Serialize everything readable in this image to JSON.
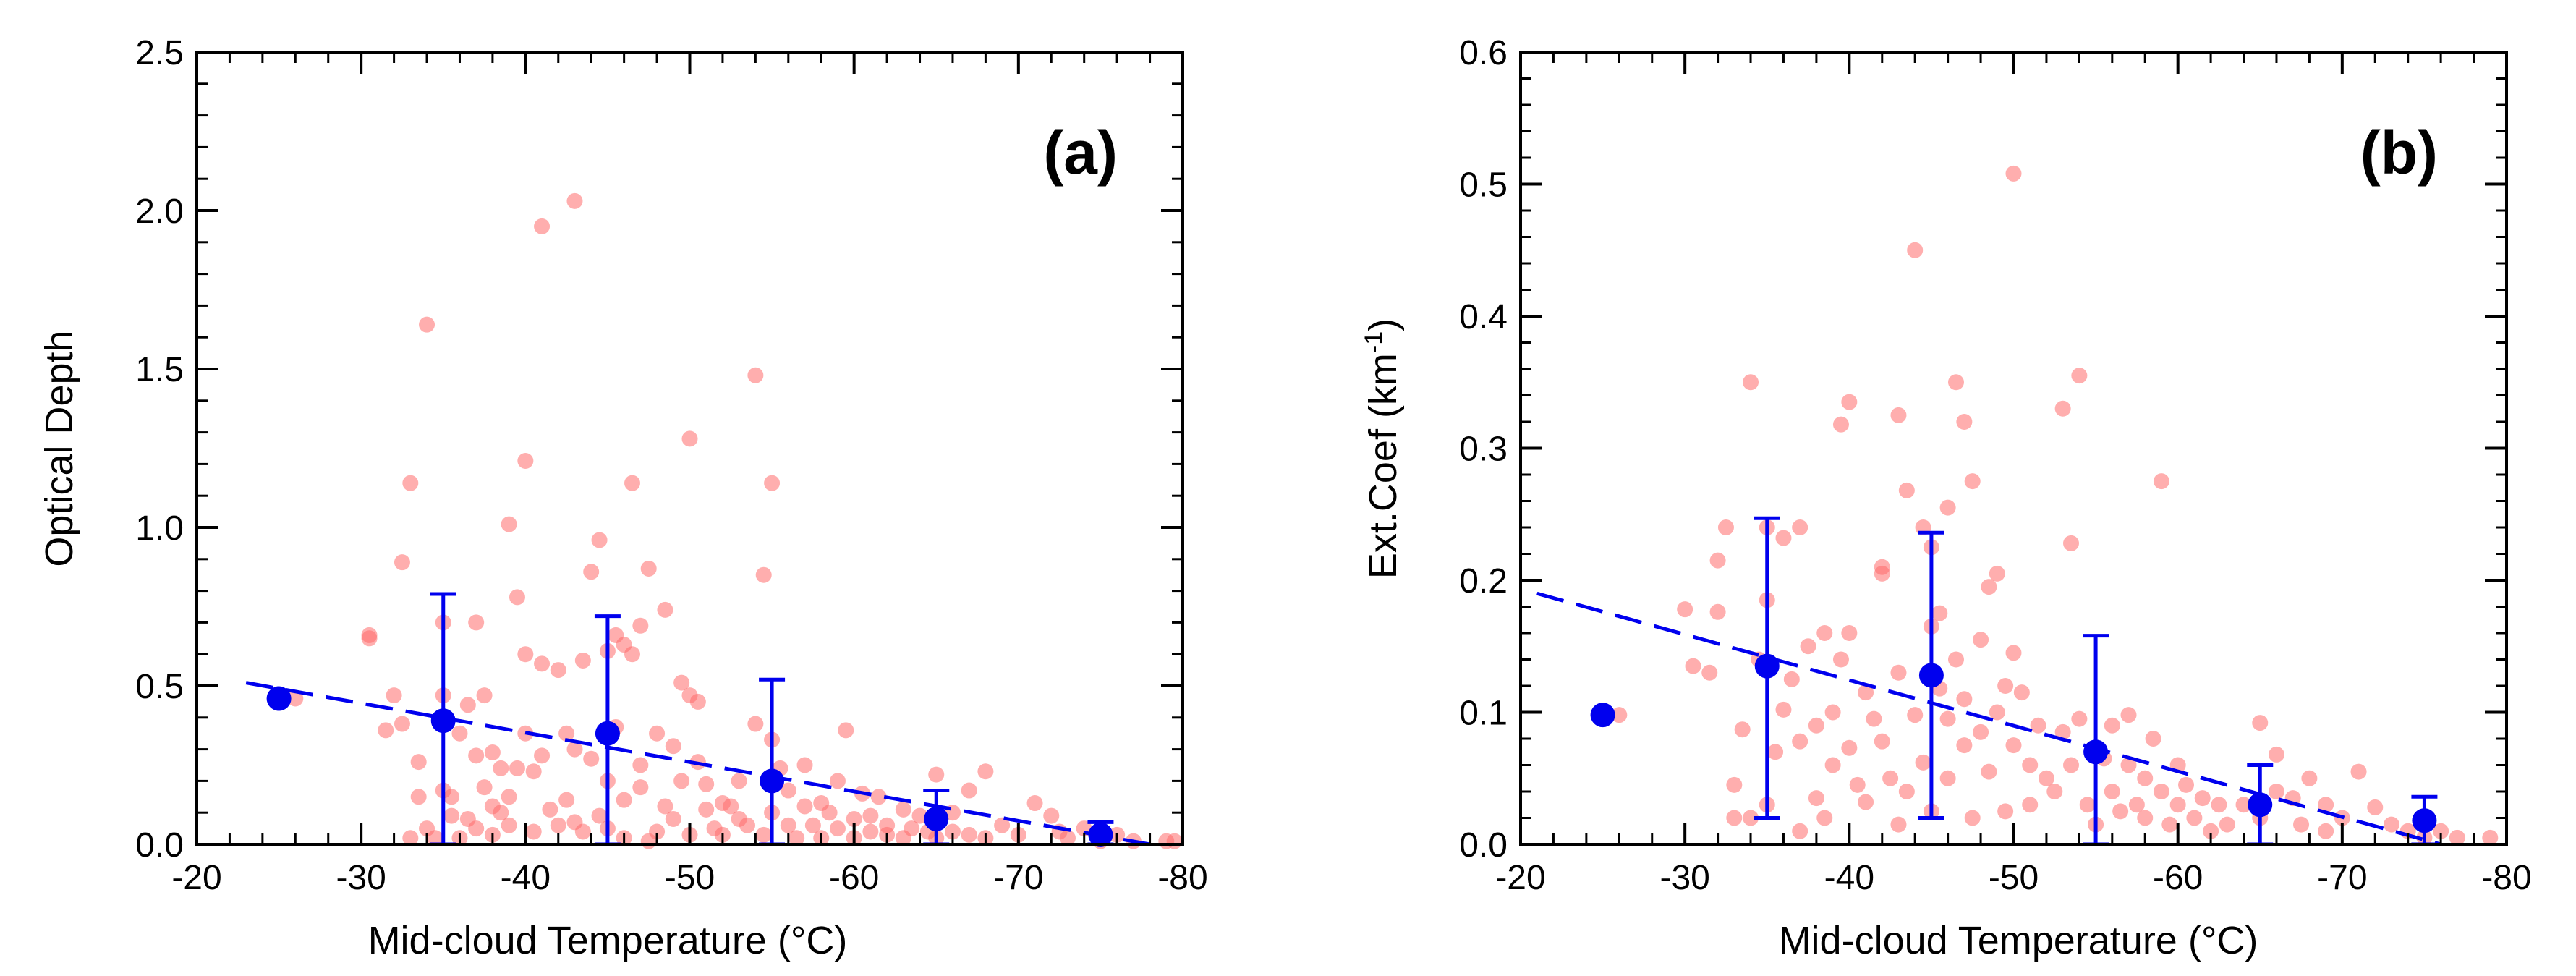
{
  "colors": {
    "scatter": "#ff6b6b",
    "mean": "#0000ee",
    "axis": "#000000"
  },
  "chart_data": [
    {
      "type": "scatter",
      "panel_label": "(a)",
      "xlabel": "Mid-cloud Temperature (",
      "xlabel_unit": "°C)",
      "ylabel": "Optical Depth",
      "xlim": [
        -20,
        -80
      ],
      "ylim": [
        0,
        2.5
      ],
      "xticks": [
        -20,
        -30,
        -40,
        -50,
        -60,
        -70,
        -80
      ],
      "xtick_labels": [
        "-20",
        "-30",
        "-40",
        "-50",
        "-60",
        "-70",
        "-80"
      ],
      "yticks": [
        0,
        0.5,
        1.0,
        1.5,
        2.0,
        2.5
      ],
      "ytick_labels": [
        "0.0",
        "0.5",
        "1.0",
        "1.5",
        "2.0",
        "2.5"
      ],
      "scatter_points": [
        [
          -26,
          0.46
        ],
        [
          -30.5,
          0.66
        ],
        [
          -30.5,
          0.65
        ],
        [
          -32,
          0.47
        ],
        [
          -31.5,
          0.36
        ],
        [
          -32.5,
          0.38
        ],
        [
          -32.5,
          0.89
        ],
        [
          -33,
          1.14
        ],
        [
          -33,
          0.02
        ],
        [
          -33.5,
          0.15
        ],
        [
          -33.5,
          0.26
        ],
        [
          -34,
          0.05
        ],
        [
          -34,
          1.64
        ],
        [
          -34.5,
          0.02
        ],
        [
          -35,
          0.17
        ],
        [
          -35,
          0.47
        ],
        [
          -35,
          0.7
        ],
        [
          -35.5,
          0.09
        ],
        [
          -35.5,
          0.15
        ],
        [
          -36,
          0.35
        ],
        [
          -36,
          0.02
        ],
        [
          -36.5,
          0.08
        ],
        [
          -36.5,
          0.44
        ],
        [
          -37,
          0.05
        ],
        [
          -37,
          0.28
        ],
        [
          -37,
          0.7
        ],
        [
          -37.5,
          0.47
        ],
        [
          -37.5,
          0.18
        ],
        [
          -38,
          0.12
        ],
        [
          -38,
          0.29
        ],
        [
          -38,
          0.03
        ],
        [
          -38.5,
          0.24
        ],
        [
          -38.5,
          0.1
        ],
        [
          -39,
          1.01
        ],
        [
          -39,
          0.15
        ],
        [
          -39,
          0.06
        ],
        [
          -39.5,
          0.24
        ],
        [
          -39.5,
          0.78
        ],
        [
          -40,
          1.21
        ],
        [
          -40,
          0.6
        ],
        [
          -40,
          0.35
        ],
        [
          -40.5,
          0.04
        ],
        [
          -40.5,
          0.23
        ],
        [
          -41,
          1.95
        ],
        [
          -41,
          0.57
        ],
        [
          -41,
          0.28
        ],
        [
          -41.5,
          0.11
        ],
        [
          -42,
          0.55
        ],
        [
          -42,
          0.06
        ],
        [
          -42.5,
          0.14
        ],
        [
          -42.5,
          0.35
        ],
        [
          -43,
          2.03
        ],
        [
          -43,
          0.3
        ],
        [
          -43,
          0.07
        ],
        [
          -43.5,
          0.58
        ],
        [
          -43.5,
          0.04
        ],
        [
          -44,
          0.27
        ],
        [
          -44,
          0.86
        ],
        [
          -44.5,
          0.96
        ],
        [
          -44.5,
          0.09
        ],
        [
          -45,
          0.61
        ],
        [
          -45,
          0.2
        ],
        [
          -45,
          0.05
        ],
        [
          -45.5,
          0.66
        ],
        [
          -45.5,
          0.37
        ],
        [
          -46,
          0.63
        ],
        [
          -46,
          0.14
        ],
        [
          -46,
          0.02
        ],
        [
          -46.5,
          1.14
        ],
        [
          -46.5,
          0.6
        ],
        [
          -47,
          0.69
        ],
        [
          -47,
          0.25
        ],
        [
          -47,
          0.18
        ],
        [
          -47.5,
          0.87
        ],
        [
          -47.5,
          0.01
        ],
        [
          -48,
          0.35
        ],
        [
          -48,
          0.04
        ],
        [
          -48.5,
          0.12
        ],
        [
          -48.5,
          0.74
        ],
        [
          -49,
          0.31
        ],
        [
          -49,
          0.08
        ],
        [
          -49.5,
          0.51
        ],
        [
          -49.5,
          0.2
        ],
        [
          -50,
          1.28
        ],
        [
          -50,
          0.47
        ],
        [
          -50,
          0.03
        ],
        [
          -50.5,
          0.26
        ],
        [
          -50.5,
          0.45
        ],
        [
          -51,
          0.11
        ],
        [
          -51,
          0.19
        ],
        [
          -51.5,
          0.05
        ],
        [
          -52,
          0.13
        ],
        [
          -52,
          0.03
        ],
        [
          -52.5,
          0.12
        ],
        [
          -53,
          0.2
        ],
        [
          -53,
          0.08
        ],
        [
          -53.5,
          0.06
        ],
        [
          -54,
          1.48
        ],
        [
          -54,
          0.38
        ],
        [
          -54.5,
          0.85
        ],
        [
          -54.5,
          0.03
        ],
        [
          -55,
          1.14
        ],
        [
          -55,
          0.33
        ],
        [
          -55,
          0.1
        ],
        [
          -55.5,
          0.24
        ],
        [
          -56,
          0.17
        ],
        [
          -56,
          0.06
        ],
        [
          -56.5,
          0.02
        ],
        [
          -57,
          0.12
        ],
        [
          -57,
          0.25
        ],
        [
          -57.5,
          0.06
        ],
        [
          -58,
          0.13
        ],
        [
          -58,
          0.02
        ],
        [
          -58.5,
          0.1
        ],
        [
          -59,
          0.05
        ],
        [
          -59,
          0.2
        ],
        [
          -59.5,
          0.36
        ],
        [
          -60,
          0.08
        ],
        [
          -60,
          0.02
        ],
        [
          -60.5,
          0.16
        ],
        [
          -61,
          0.04
        ],
        [
          -61,
          0.09
        ],
        [
          -61.5,
          0.15
        ],
        [
          -62,
          0.03
        ],
        [
          -62,
          0.06
        ],
        [
          -63,
          0.11
        ],
        [
          -63,
          0.02
        ],
        [
          -63.5,
          0.05
        ],
        [
          -64,
          0.09
        ],
        [
          -64.5,
          0.04
        ],
        [
          -65,
          0.22
        ],
        [
          -65,
          0.02
        ],
        [
          -66,
          0.1
        ],
        [
          -66,
          0.04
        ],
        [
          -67,
          0.17
        ],
        [
          -67,
          0.03
        ],
        [
          -68,
          0.23
        ],
        [
          -68,
          0.02
        ],
        [
          -69,
          0.06
        ],
        [
          -70,
          0.03
        ],
        [
          -71,
          0.13
        ],
        [
          -72,
          0.09
        ],
        [
          -72.5,
          0.04
        ],
        [
          -73,
          0.02
        ],
        [
          -74,
          0.05
        ],
        [
          -75,
          0.01
        ],
        [
          -76,
          0.03
        ],
        [
          -77,
          0.01
        ],
        [
          -79,
          0.01
        ],
        [
          -79.5,
          0.01
        ]
      ],
      "means": [
        {
          "x": -25,
          "y": 0.46,
          "err_low": null,
          "err_high": null
        },
        {
          "x": -35,
          "y": 0.39,
          "err_low": 0.0,
          "err_high": 0.79
        },
        {
          "x": -45,
          "y": 0.35,
          "err_low": 0.0,
          "err_high": 0.72
        },
        {
          "x": -55,
          "y": 0.2,
          "err_low": 0.0,
          "err_high": 0.52
        },
        {
          "x": -65,
          "y": 0.08,
          "err_low": 0.0,
          "err_high": 0.17
        },
        {
          "x": -75,
          "y": 0.03,
          "err_low": 0.0,
          "err_high": 0.07
        }
      ],
      "fit_line": {
        "x1": -23,
        "y1": 0.51,
        "x2": -78,
        "y2": 0.0
      }
    },
    {
      "type": "scatter",
      "panel_label": "(b)",
      "xlabel": "Mid-cloud Temperature (",
      "xlabel_unit": "°C)",
      "ylabel": "Ext.Coef (km",
      "ylabel_sup": "-1",
      "ylabel_end": ")",
      "xlim": [
        -20,
        -80
      ],
      "ylim": [
        0,
        0.6
      ],
      "xticks": [
        -20,
        -30,
        -40,
        -50,
        -60,
        -70,
        -80
      ],
      "xtick_labels": [
        "-20",
        "-30",
        "-40",
        "-50",
        "-60",
        "-70",
        "-80"
      ],
      "yticks": [
        0,
        0.1,
        0.2,
        0.3,
        0.4,
        0.5,
        0.6
      ],
      "ytick_labels": [
        "0.0",
        "0.1",
        "0.2",
        "0.3",
        "0.4",
        "0.5",
        "0.6"
      ],
      "scatter_points": [
        [
          -26,
          0.098
        ],
        [
          -30,
          0.178
        ],
        [
          -30.5,
          0.135
        ],
        [
          -31.5,
          0.13
        ],
        [
          -32,
          0.176
        ],
        [
          -32,
          0.215
        ],
        [
          -32.5,
          0.24
        ],
        [
          -33,
          0.045
        ],
        [
          -33,
          0.02
        ],
        [
          -33.5,
          0.087
        ],
        [
          -34,
          0.35
        ],
        [
          -34,
          0.02
        ],
        [
          -34.5,
          0.14
        ],
        [
          -35,
          0.03
        ],
        [
          -35,
          0.185
        ],
        [
          -35,
          0.24
        ],
        [
          -35.5,
          0.07
        ],
        [
          -36,
          0.102
        ],
        [
          -36,
          0.232
        ],
        [
          -36.5,
          0.125
        ],
        [
          -37,
          0.01
        ],
        [
          -37,
          0.078
        ],
        [
          -37,
          0.24
        ],
        [
          -37.5,
          0.15
        ],
        [
          -38,
          0.09
        ],
        [
          -38,
          0.035
        ],
        [
          -38.5,
          0.16
        ],
        [
          -38.5,
          0.02
        ],
        [
          -39,
          0.1
        ],
        [
          -39,
          0.06
        ],
        [
          -39.5,
          0.318
        ],
        [
          -39.5,
          0.14
        ],
        [
          -40,
          0.335
        ],
        [
          -40,
          0.16
        ],
        [
          -40,
          0.073
        ],
        [
          -40.5,
          0.045
        ],
        [
          -41,
          0.115
        ],
        [
          -41,
          0.032
        ],
        [
          -41.5,
          0.095
        ],
        [
          -42,
          0.21
        ],
        [
          -42,
          0.205
        ],
        [
          -42,
          0.078
        ],
        [
          -42.5,
          0.05
        ],
        [
          -43,
          0.325
        ],
        [
          -43,
          0.13
        ],
        [
          -43,
          0.015
        ],
        [
          -43.5,
          0.268
        ],
        [
          -43.5,
          0.04
        ],
        [
          -44,
          0.45
        ],
        [
          -44,
          0.098
        ],
        [
          -44.5,
          0.24
        ],
        [
          -44.5,
          0.062
        ],
        [
          -45,
          0.225
        ],
        [
          -45,
          0.165
        ],
        [
          -45,
          0.025
        ],
        [
          -45.5,
          0.175
        ],
        [
          -45.5,
          0.118
        ],
        [
          -46,
          0.255
        ],
        [
          -46,
          0.095
        ],
        [
          -46,
          0.05
        ],
        [
          -46.5,
          0.35
        ],
        [
          -46.5,
          0.14
        ],
        [
          -47,
          0.32
        ],
        [
          -47,
          0.11
        ],
        [
          -47,
          0.075
        ],
        [
          -47.5,
          0.275
        ],
        [
          -47.5,
          0.02
        ],
        [
          -48,
          0.155
        ],
        [
          -48,
          0.085
        ],
        [
          -48.5,
          0.195
        ],
        [
          -48.5,
          0.055
        ],
        [
          -49,
          0.205
        ],
        [
          -49,
          0.1
        ],
        [
          -49.5,
          0.12
        ],
        [
          -49.5,
          0.025
        ],
        [
          -50,
          0.508
        ],
        [
          -50,
          0.145
        ],
        [
          -50,
          0.075
        ],
        [
          -50.5,
          0.115
        ],
        [
          -51,
          0.06
        ],
        [
          -51,
          0.03
        ],
        [
          -51.5,
          0.09
        ],
        [
          -52,
          0.05
        ],
        [
          -52.5,
          0.04
        ],
        [
          -53,
          0.33
        ],
        [
          -53,
          0.085
        ],
        [
          -53.5,
          0.228
        ],
        [
          -53.5,
          0.06
        ],
        [
          -54,
          0.355
        ],
        [
          -54,
          0.095
        ],
        [
          -54.5,
          0.03
        ],
        [
          -55,
          0.015
        ],
        [
          -55.5,
          0.065
        ],
        [
          -56,
          0.09
        ],
        [
          -56,
          0.04
        ],
        [
          -56.5,
          0.025
        ],
        [
          -57,
          0.098
        ],
        [
          -57,
          0.06
        ],
        [
          -57.5,
          0.03
        ],
        [
          -58,
          0.05
        ],
        [
          -58,
          0.02
        ],
        [
          -58.5,
          0.08
        ],
        [
          -59,
          0.04
        ],
        [
          -59,
          0.275
        ],
        [
          -59.5,
          0.015
        ],
        [
          -60,
          0.06
        ],
        [
          -60,
          0.03
        ],
        [
          -60.5,
          0.045
        ],
        [
          -61,
          0.02
        ],
        [
          -61.5,
          0.035
        ],
        [
          -62,
          0.01
        ],
        [
          -62.5,
          0.03
        ],
        [
          -63,
          0.015
        ],
        [
          -64,
          0.03
        ],
        [
          -65,
          0.092
        ],
        [
          -65,
          0.02
        ],
        [
          -66,
          0.068
        ],
        [
          -66,
          0.04
        ],
        [
          -67,
          0.035
        ],
        [
          -67.5,
          0.015
        ],
        [
          -68,
          0.05
        ],
        [
          -69,
          0.03
        ],
        [
          -69,
          0.01
        ],
        [
          -70,
          0.02
        ],
        [
          -71,
          0.055
        ],
        [
          -72,
          0.028
        ],
        [
          -73,
          0.015
        ],
        [
          -74,
          0.01
        ],
        [
          -75,
          0.005
        ],
        [
          -76,
          0.01
        ],
        [
          -77,
          0.005
        ],
        [
          -79,
          0.005
        ]
      ],
      "means": [
        {
          "x": -25,
          "y": 0.098,
          "err_low": null,
          "err_high": null
        },
        {
          "x": -35,
          "y": 0.135,
          "err_low": 0.02,
          "err_high": 0.247
        },
        {
          "x": -45,
          "y": 0.128,
          "err_low": 0.02,
          "err_high": 0.236
        },
        {
          "x": -55,
          "y": 0.07,
          "err_low": 0.0,
          "err_high": 0.158
        },
        {
          "x": -65,
          "y": 0.03,
          "err_low": 0.0,
          "err_high": 0.06
        },
        {
          "x": -75,
          "y": 0.018,
          "err_low": 0.0,
          "err_high": 0.036
        }
      ],
      "fit_line": {
        "x1": -21,
        "y1": 0.19,
        "x2": -76,
        "y2": 0.0
      }
    }
  ]
}
